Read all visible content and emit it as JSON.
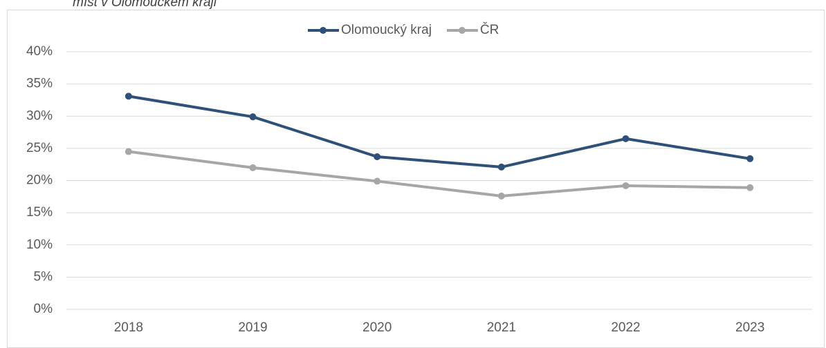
{
  "chart_data": {
    "type": "line",
    "title": "míst v Olomouckém kraji",
    "categories": [
      "2018",
      "2019",
      "2020",
      "2021",
      "2022",
      "2023"
    ],
    "series": [
      {
        "name": "Olomoucký kraj",
        "color": "#2e5079",
        "values": [
          33.1,
          29.9,
          23.7,
          22.1,
          26.5,
          23.4
        ]
      },
      {
        "name": "ČR",
        "color": "#a6a6a6",
        "values": [
          24.5,
          22.0,
          19.9,
          17.6,
          19.2,
          18.9
        ]
      }
    ],
    "ylim": [
      0,
      40
    ],
    "yticks": [
      {
        "value": 0,
        "label": "0%"
      },
      {
        "value": 5,
        "label": "5%"
      },
      {
        "value": 10,
        "label": "10%"
      },
      {
        "value": 15,
        "label": "15%"
      },
      {
        "value": 20,
        "label": "20%"
      },
      {
        "value": 25,
        "label": "25%"
      },
      {
        "value": 30,
        "label": "30%"
      },
      {
        "value": 35,
        "label": "35%"
      },
      {
        "value": 40,
        "label": "40%"
      }
    ],
    "grid": true,
    "legend": "top"
  }
}
